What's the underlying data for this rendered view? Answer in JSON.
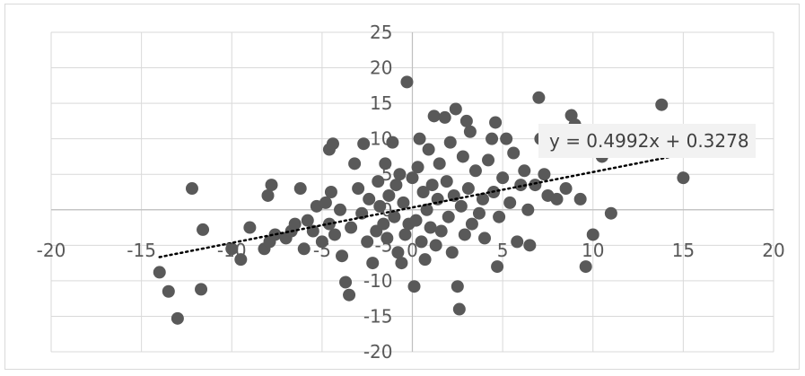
{
  "chart_data": {
    "type": "scatter",
    "title": "",
    "xlabel": "",
    "ylabel": "",
    "xlim": [
      -20,
      20
    ],
    "ylim": [
      -20,
      25
    ],
    "x_ticks": [
      -20,
      -15,
      -10,
      -5,
      0,
      5,
      10,
      15,
      20
    ],
    "y_ticks": [
      25,
      20,
      15,
      10,
      5,
      0,
      -5,
      -10,
      -15,
      -20
    ],
    "x_tick_labels": [
      "-20",
      "-15",
      "-10",
      "-5",
      "0",
      "5",
      "10",
      "15",
      "20"
    ],
    "y_tick_labels": [
      "25",
      "20",
      "15",
      "10",
      "5",
      "0",
      "-5",
      "-10",
      "-15",
      "-20"
    ],
    "grid": true,
    "marker_color": "#595959",
    "trendline": {
      "type": "linear",
      "slope": 0.4992,
      "intercept": 0.3278,
      "x_range": [
        -14,
        15
      ],
      "style": "dotted",
      "color": "#000000",
      "equation_label": "y = 0.4992x  + 0.3278"
    },
    "points": [
      [
        -14,
        -8.8
      ],
      [
        -13.5,
        -11.5
      ],
      [
        -13,
        -15.3
      ],
      [
        -12.2,
        3
      ],
      [
        -11.6,
        -2.8
      ],
      [
        -11.7,
        -11.2
      ],
      [
        -10,
        -5.5
      ],
      [
        -9.5,
        -7
      ],
      [
        -9,
        -2.5
      ],
      [
        -8.2,
        -5.5
      ],
      [
        -8,
        2
      ],
      [
        -7.9,
        -4.5
      ],
      [
        -7.8,
        3.5
      ],
      [
        -7.6,
        -3.5
      ],
      [
        -7,
        -4
      ],
      [
        -6.7,
        -3
      ],
      [
        -6.5,
        -2
      ],
      [
        -6.2,
        3
      ],
      [
        -6,
        -5.5
      ],
      [
        -5.8,
        -1.5
      ],
      [
        -5.5,
        -3
      ],
      [
        -5.3,
        0.5
      ],
      [
        -5,
        -4.5
      ],
      [
        -4.8,
        1
      ],
      [
        -4.6,
        -2
      ],
      [
        -4.5,
        2.5
      ],
      [
        -4.3,
        -3.5
      ],
      [
        -4.6,
        8.5
      ],
      [
        -4.4,
        9.3
      ],
      [
        -4,
        0
      ],
      [
        -3.9,
        -6.5
      ],
      [
        -3.7,
        -10.2
      ],
      [
        -3.5,
        -12
      ],
      [
        -3.4,
        -2.5
      ],
      [
        -3.2,
        6.5
      ],
      [
        -3,
        3
      ],
      [
        -2.8,
        -0.5
      ],
      [
        -2.7,
        9.3
      ],
      [
        -2.5,
        -4.5
      ],
      [
        -2.4,
        1.5
      ],
      [
        -2.2,
        -7.5
      ],
      [
        -2,
        -3
      ],
      [
        -1.9,
        4
      ],
      [
        -1.8,
        0.5
      ],
      [
        -1.6,
        -2
      ],
      [
        -1.5,
        6.5
      ],
      [
        -1.4,
        -4
      ],
      [
        -1.3,
        2
      ],
      [
        -1.1,
        9.5
      ],
      [
        -1,
        -1
      ],
      [
        -0.9,
        3.5
      ],
      [
        -0.8,
        -6
      ],
      [
        -0.7,
        5
      ],
      [
        -0.6,
        -7.5
      ],
      [
        -0.5,
        1
      ],
      [
        -0.4,
        -3.5
      ],
      [
        -0.3,
        18
      ],
      [
        -0.2,
        -2
      ],
      [
        0,
        4.5
      ],
      [
        0.1,
        -10.8
      ],
      [
        0.2,
        -1.5
      ],
      [
        0.3,
        6
      ],
      [
        0.4,
        10
      ],
      [
        0.5,
        -4.5
      ],
      [
        0.6,
        2.5
      ],
      [
        0.7,
        -7
      ],
      [
        0.8,
        0
      ],
      [
        0.9,
        8.5
      ],
      [
        1,
        -2.5
      ],
      [
        1.1,
        3.5
      ],
      [
        1.2,
        13.2
      ],
      [
        1.3,
        -5
      ],
      [
        1.4,
        1.5
      ],
      [
        1.5,
        6.5
      ],
      [
        1.6,
        -3
      ],
      [
        1.8,
        13
      ],
      [
        1.9,
        4
      ],
      [
        2,
        -1
      ],
      [
        2.1,
        9.5
      ],
      [
        2.2,
        -6
      ],
      [
        2.3,
        2
      ],
      [
        2.4,
        14.2
      ],
      [
        2.5,
        -10.8
      ],
      [
        2.6,
        -14
      ],
      [
        2.7,
        0.5
      ],
      [
        2.8,
        7.5
      ],
      [
        2.9,
        -3.5
      ],
      [
        3,
        12.5
      ],
      [
        3.1,
        3
      ],
      [
        3.2,
        11
      ],
      [
        3.3,
        -2
      ],
      [
        3.5,
        5.5
      ],
      [
        3.7,
        -0.5
      ],
      [
        3.9,
        1.5
      ],
      [
        4,
        -4
      ],
      [
        4.2,
        7
      ],
      [
        4.4,
        10
      ],
      [
        4.5,
        2.5
      ],
      [
        4.6,
        12.3
      ],
      [
        4.7,
        -8
      ],
      [
        4.8,
        -1
      ],
      [
        5,
        4.5
      ],
      [
        5.2,
        10
      ],
      [
        5.4,
        1
      ],
      [
        5.6,
        8
      ],
      [
        5.8,
        -4.5
      ],
      [
        6,
        3.5
      ],
      [
        6.2,
        5.5
      ],
      [
        6.4,
        0
      ],
      [
        6.5,
        -5
      ],
      [
        6.8,
        3.5
      ],
      [
        7,
        15.8
      ],
      [
        7.1,
        10
      ],
      [
        7.3,
        5
      ],
      [
        7.5,
        2
      ],
      [
        8,
        1.5
      ],
      [
        8.5,
        3
      ],
      [
        8.8,
        13.3
      ],
      [
        9,
        12
      ],
      [
        9.3,
        1.5
      ],
      [
        9.6,
        -8
      ],
      [
        10,
        -3.5
      ],
      [
        10.5,
        7.5
      ],
      [
        11,
        -0.5
      ],
      [
        13.8,
        14.8
      ],
      [
        15,
        4.5
      ]
    ]
  }
}
